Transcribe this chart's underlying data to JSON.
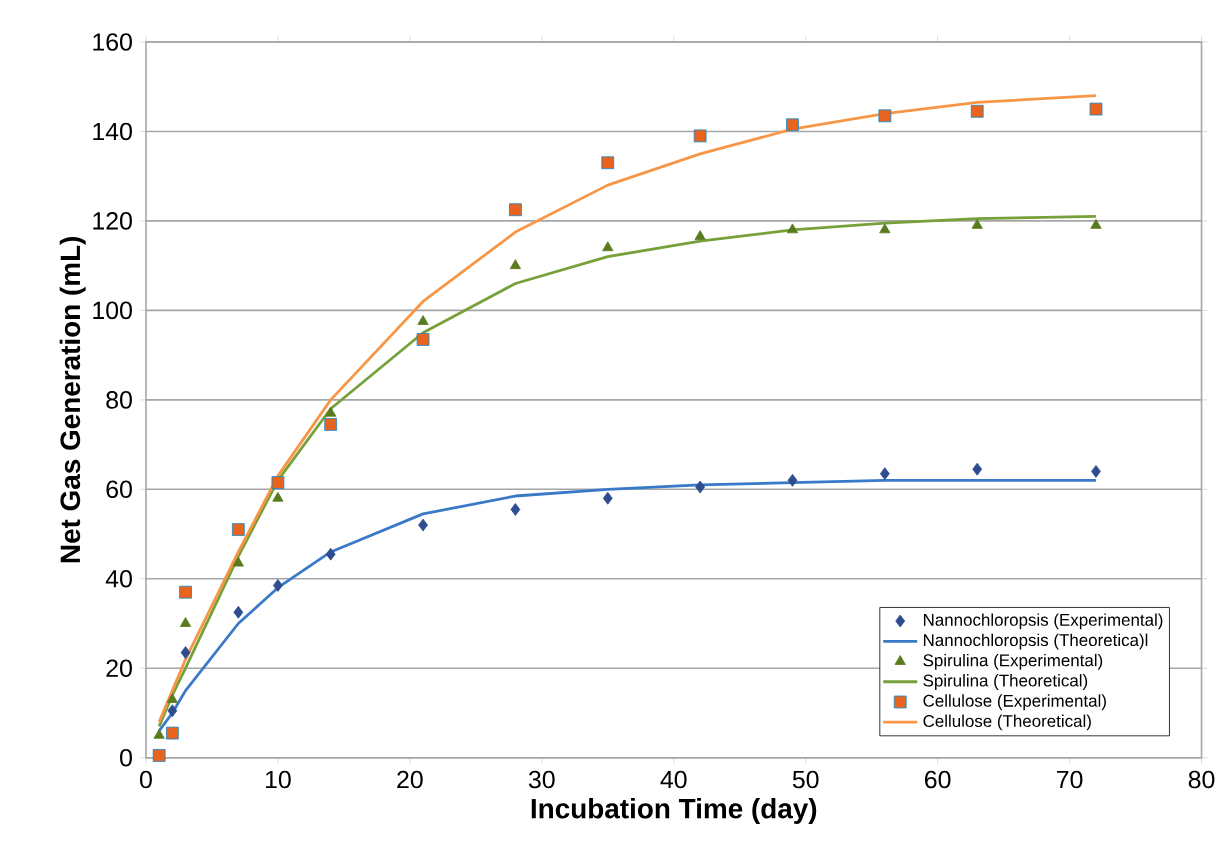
{
  "chart_data": {
    "type": "scatter",
    "xlabel": "Incubation Time (day)",
    "ylabel": "Net Gas Generation (mL)",
    "x": [
      1,
      2,
      3,
      7,
      10,
      14,
      21,
      28,
      35,
      42,
      49,
      56,
      63,
      72
    ],
    "xlim": [
      0,
      80
    ],
    "xticks": [
      0,
      10,
      20,
      30,
      40,
      50,
      60,
      70,
      80
    ],
    "ylim": [
      0,
      160
    ],
    "yticks": [
      0,
      20,
      40,
      60,
      80,
      100,
      120,
      140,
      160
    ],
    "grid": "y",
    "legend": "bottom right",
    "series": [
      {
        "name": "Nannochloropsis (Experimental)",
        "marker": "diamond",
        "color": "#2e4d8f",
        "values": [
          null,
          10.5,
          23.5,
          32.5,
          38.5,
          45.5,
          52,
          55.5,
          58,
          60.5,
          62,
          63.5,
          64.5,
          64
        ]
      },
      {
        "name": "Nannochloropsis (Theoretica)l",
        "type": "line",
        "marker": "none",
        "color": "#3a78c8",
        "values": [
          6,
          10,
          15,
          30,
          38,
          46,
          54.5,
          58.5,
          60,
          61,
          61.5,
          62,
          62,
          62
        ]
      },
      {
        "name": "Spirulina (Experimental)",
        "marker": "triangle",
        "color": "#5a7a1e",
        "values": [
          5,
          13,
          30,
          43.5,
          58,
          77,
          97.5,
          110,
          114,
          116.5,
          118,
          118,
          119,
          119
        ]
      },
      {
        "name": "Spirulina (Theoretical)",
        "type": "line",
        "marker": "none",
        "color": "#77a03a",
        "values": [
          7,
          14,
          20,
          45,
          62,
          78,
          95,
          106,
          112,
          115.5,
          118,
          119.5,
          120.5,
          121
        ]
      },
      {
        "name": "Cellulose (Experimental)",
        "marker": "square",
        "color": "#e8641e",
        "values": [
          0.5,
          5.5,
          37,
          51,
          61.5,
          74.5,
          93.5,
          122.5,
          133,
          139,
          141.5,
          143.5,
          144.5,
          145
        ]
      },
      {
        "name": "Cellulose (Theoretical)",
        "type": "line",
        "marker": "none",
        "color": "#f79646",
        "values": [
          8,
          15,
          22,
          46,
          63,
          80,
          102,
          117.5,
          128,
          135,
          140.5,
          144,
          146.5,
          148
        ]
      }
    ]
  }
}
